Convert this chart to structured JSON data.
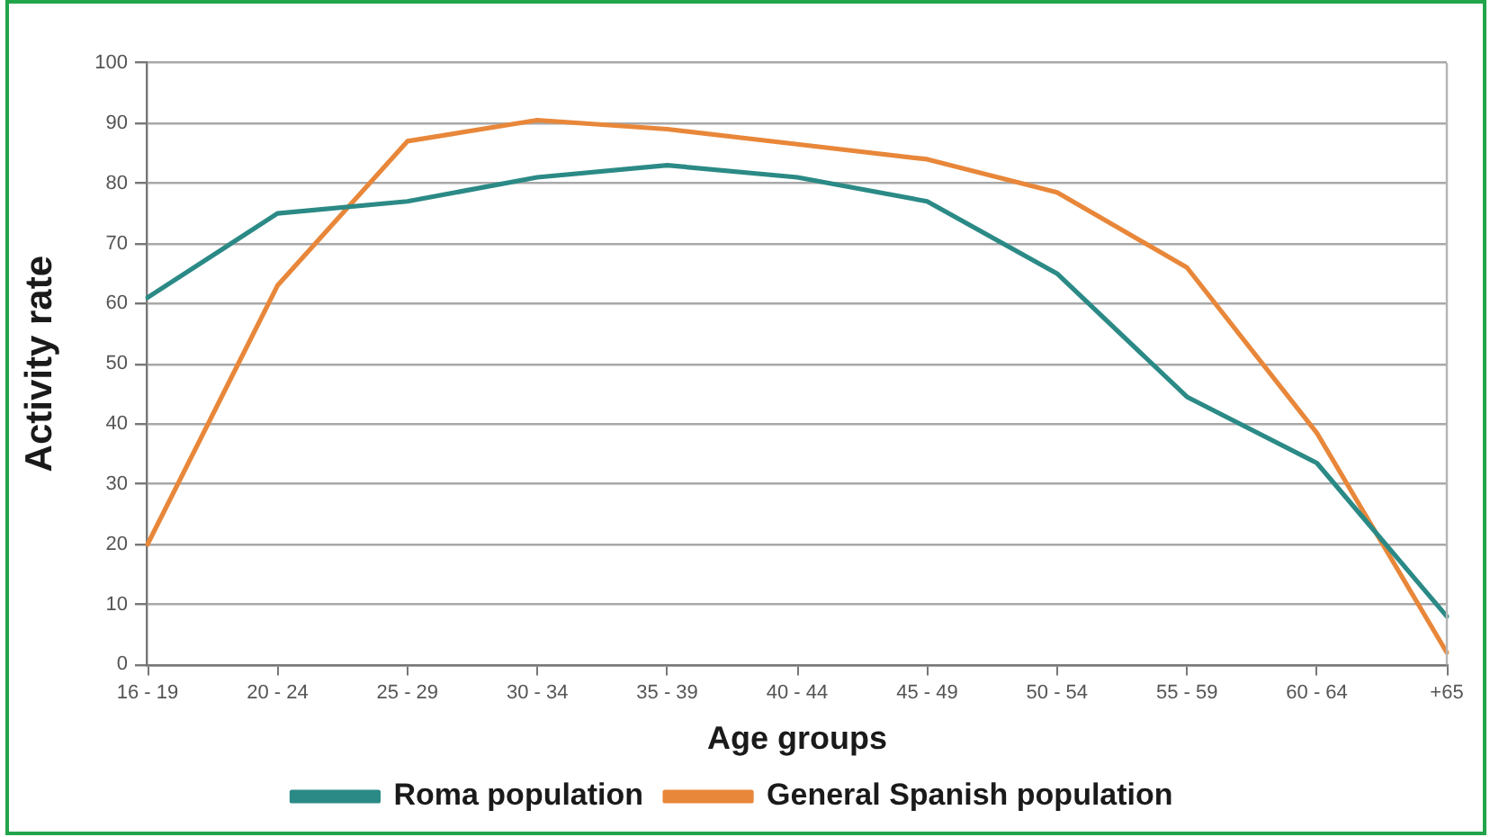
{
  "chart_data": {
    "type": "line",
    "xlabel": "Age groups",
    "ylabel": "Activity rate",
    "categories": [
      "16 - 19",
      "20 - 24",
      "25 - 29",
      "30 - 34",
      "35 - 39",
      "40 - 44",
      "45 - 49",
      "50 - 54",
      "55 - 59",
      "60 - 64",
      "+65"
    ],
    "series": [
      {
        "name": "Roma population",
        "color": "#2b8a86",
        "values": [
          61,
          75,
          77,
          81,
          83,
          81,
          77,
          65,
          44.5,
          33.5,
          8
        ]
      },
      {
        "name": "General Spanish population",
        "color": "#e8873a",
        "values": [
          20,
          63,
          87,
          90.5,
          89,
          86.5,
          84,
          78.5,
          66,
          38.5,
          2
        ]
      }
    ],
    "ylim": [
      0,
      100
    ],
    "yticks": [
      0,
      10,
      20,
      30,
      40,
      50,
      60,
      70,
      80,
      90,
      100
    ],
    "grid": "y",
    "legend": "bottom",
    "marker": "none",
    "line_style": "solid"
  }
}
